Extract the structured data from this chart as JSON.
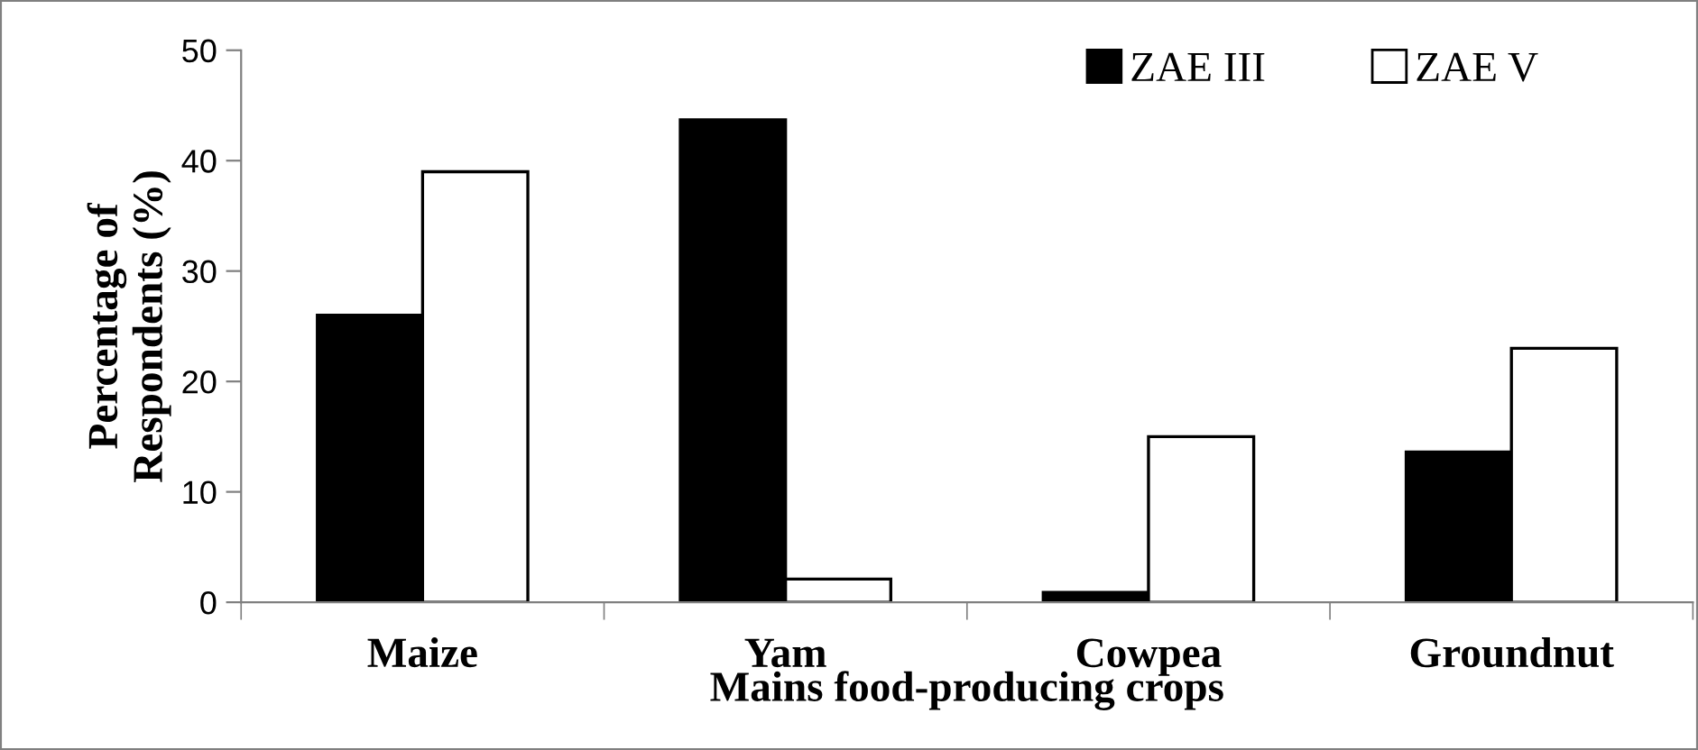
{
  "chart_data": {
    "type": "bar",
    "xlabel": "Mains food-producing crops",
    "ylabel": "Percentage of\nRespondents (%)",
    "categories": [
      "Maize",
      "Yam",
      "Cowpea",
      "Groundnut"
    ],
    "series": [
      {
        "name": "ZAE III",
        "color": "#000000",
        "values": [
          26.0,
          43.7,
          0.9,
          13.6
        ]
      },
      {
        "name": "ZAE V",
        "color": "#ffffff",
        "values": [
          39.0,
          2.1,
          15.0,
          23.0
        ]
      }
    ],
    "ylim": [
      0,
      50
    ],
    "yticks": [
      0,
      10,
      20,
      30,
      40,
      50
    ],
    "grid": false,
    "legend": "top right"
  }
}
